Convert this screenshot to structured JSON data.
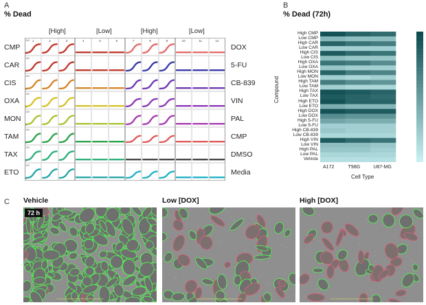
{
  "panelA": {
    "letter": "A",
    "title": "% Dead",
    "groups": [
      "[High]",
      "[Low]",
      "[High]",
      "[Low]"
    ],
    "columns": [
      "1",
      "2",
      "3",
      "4",
      "5",
      "6",
      "7",
      "8",
      "9",
      "10",
      "11",
      "12"
    ],
    "left_labels": [
      "CMP",
      "CAR",
      "CIS",
      "OXA",
      "MON",
      "TAM",
      "TAX",
      "ETO"
    ],
    "right_labels": [
      "DOX",
      "5-FU",
      "CB-839",
      "VIN",
      "PAL",
      "CMP",
      "DMSO",
      "Media"
    ],
    "ytick_top": "100",
    "ytick_bottom": "0",
    "xticks": [
      "0",
      "50"
    ],
    "colors_left": [
      "#c0392b",
      "#c0392b",
      "#d4862a",
      "#d8c22a",
      "#a9c331",
      "#2aa34a",
      "#2bb07a",
      "#27a6a6"
    ],
    "colors_right": [
      "#e36b6b",
      "#3a3aa8",
      "#6d3ab5",
      "#8a3ab5",
      "#a63ab0",
      "#e05a5a",
      "#444444",
      "#1fb3c5"
    ]
  },
  "panelB": {
    "letter": "B",
    "title": "% Dead (72h)",
    "ylabel": "Compound",
    "xlabel": "Cell Type",
    "rows": [
      "High CMP",
      "Low CMP",
      "High CAR",
      "Low CAR",
      "High CIS",
      "Low CIS",
      "High OXA",
      "Low OXA",
      "High MON",
      "Low MON",
      "High TAM",
      "Low TAM",
      "High TAX",
      "Low TAX",
      "High ETO",
      "Low ETO",
      "High DOX",
      "Low DOX",
      "High 5-FU",
      "Low 5-FU",
      "High CB-839",
      "Low CB-839",
      "High VIN",
      "Low VIN",
      "High PAL",
      "Low PAL",
      "Vehicle"
    ],
    "cols": [
      "A172",
      "T98G",
      "U87-MG"
    ]
  },
  "chart_data": {
    "type": "heatmap",
    "title": "% Dead (72h)",
    "xlabel": "Cell Type",
    "ylabel": "Compound",
    "x": [
      "A172",
      "T98G",
      "U87-MG"
    ],
    "y": [
      "High CMP",
      "Low CMP",
      "High CAR",
      "Low CAR",
      "High CIS",
      "Low CIS",
      "High OXA",
      "Low OXA",
      "High MON",
      "Low MON",
      "High TAM",
      "Low TAM",
      "High TAX",
      "Low TAX",
      "High ETO",
      "Low ETO",
      "High DOX",
      "Low DOX",
      "High 5-FU",
      "Low 5-FU",
      "High CB-839",
      "Low CB-839",
      "High VIN",
      "Low VIN",
      "High PAL",
      "Low PAL",
      "Vehicle"
    ],
    "values": [
      [
        0.95,
        0.85,
        0.8
      ],
      [
        0.35,
        0.3,
        0.3
      ],
      [
        0.85,
        0.75,
        0.7
      ],
      [
        0.2,
        0.2,
        0.2
      ],
      [
        0.9,
        0.8,
        0.75
      ],
      [
        0.3,
        0.25,
        0.25
      ],
      [
        0.75,
        0.7,
        0.6
      ],
      [
        0.25,
        0.2,
        0.2
      ],
      [
        0.85,
        0.7,
        0.65
      ],
      [
        0.2,
        0.15,
        0.2
      ],
      [
        0.7,
        0.6,
        0.55
      ],
      [
        0.2,
        0.15,
        0.15
      ],
      [
        0.95,
        0.9,
        0.85
      ],
      [
        0.9,
        0.85,
        0.8
      ],
      [
        0.95,
        0.85,
        0.85
      ],
      [
        0.4,
        0.35,
        0.35
      ],
      [
        0.95,
        0.9,
        0.9
      ],
      [
        0.6,
        0.55,
        0.55
      ],
      [
        0.45,
        0.4,
        0.4
      ],
      [
        0.2,
        0.2,
        0.2
      ],
      [
        0.25,
        0.2,
        0.2
      ],
      [
        0.15,
        0.15,
        0.15
      ],
      [
        0.9,
        0.8,
        0.75
      ],
      [
        0.3,
        0.3,
        0.25
      ],
      [
        0.25,
        0.25,
        0.2
      ],
      [
        0.15,
        0.15,
        0.15
      ],
      [
        0.1,
        0.1,
        0.1
      ]
    ],
    "colorscale": [
      "#c8f0f2",
      "#0b4a4e"
    ]
  },
  "panelC": {
    "letter": "C",
    "titles": [
      "Vehicle",
      "Low [DOX]",
      "High [DOX]"
    ],
    "badge": "72 h"
  }
}
